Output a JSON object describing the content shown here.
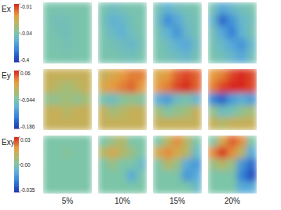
{
  "chart_data": [
    {
      "type": "heatmap",
      "title": "Ex",
      "colorbar": {
        "range": [
          -0.4,
          -0.01
        ],
        "ticks": [
          -0.4,
          -0.04,
          -0.01
        ]
      },
      "cells": [
        [
          [
            -0.045,
            -0.05,
            -0.045,
            -0.045,
            -0.045
          ],
          [
            -0.05,
            -0.07,
            -0.06,
            -0.05,
            -0.045
          ],
          [
            -0.045,
            -0.06,
            -0.07,
            -0.05,
            -0.045
          ],
          [
            -0.045,
            -0.05,
            -0.06,
            -0.05,
            -0.045
          ],
          [
            -0.045,
            -0.045,
            -0.05,
            -0.045,
            -0.045
          ]
        ],
        [
          [
            -0.05,
            -0.08,
            -0.06,
            -0.05,
            -0.05
          ],
          [
            -0.06,
            -0.12,
            -0.1,
            -0.06,
            -0.05
          ],
          [
            -0.05,
            -0.09,
            -0.12,
            -0.07,
            -0.05
          ],
          [
            -0.05,
            -0.06,
            -0.08,
            -0.1,
            -0.06
          ],
          [
            -0.05,
            -0.05,
            -0.06,
            -0.07,
            -0.05
          ]
        ],
        [
          [
            -0.06,
            -0.12,
            -0.08,
            -0.06,
            -0.05
          ],
          [
            -0.08,
            -0.22,
            -0.15,
            -0.08,
            -0.06
          ],
          [
            -0.06,
            -0.12,
            -0.2,
            -0.1,
            -0.06
          ],
          [
            -0.05,
            -0.08,
            -0.12,
            -0.15,
            -0.08
          ],
          [
            -0.05,
            -0.06,
            -0.08,
            -0.1,
            -0.06
          ]
        ],
        [
          [
            -0.06,
            -0.15,
            -0.1,
            -0.07,
            -0.05
          ],
          [
            -0.1,
            -0.3,
            -0.2,
            -0.1,
            -0.07
          ],
          [
            -0.07,
            -0.15,
            -0.25,
            -0.12,
            -0.06
          ],
          [
            -0.06,
            -0.1,
            -0.15,
            -0.2,
            -0.1
          ],
          [
            -0.05,
            -0.07,
            -0.1,
            -0.15,
            -0.07
          ]
        ]
      ]
    },
    {
      "type": "heatmap",
      "title": "Ey",
      "colorbar": {
        "range": [
          -0.186,
          0.06
        ],
        "ticks": [
          -0.186,
          -0.044,
          0.06
        ]
      },
      "cells": [
        [
          [
            0,
            0,
            0,
            0,
            0
          ],
          [
            0,
            -0.01,
            -0.02,
            -0.01,
            0
          ],
          [
            -0.03,
            -0.03,
            -0.02,
            -0.03,
            -0.02
          ],
          [
            0,
            0,
            -0.01,
            0,
            0
          ],
          [
            0,
            0,
            0,
            0,
            0
          ]
        ],
        [
          [
            0,
            0.01,
            0.02,
            0.03,
            0.03
          ],
          [
            0.01,
            0.02,
            0.03,
            0.04,
            0.02
          ],
          [
            -0.05,
            -0.06,
            -0.04,
            -0.03,
            -0.04
          ],
          [
            0,
            -0.02,
            -0.01,
            0,
            0
          ],
          [
            0,
            0,
            0,
            0,
            0
          ]
        ],
        [
          [
            0.01,
            0.02,
            0.04,
            0.05,
            0.04
          ],
          [
            0.02,
            0.03,
            0.05,
            0.06,
            0.04
          ],
          [
            -0.08,
            -0.1,
            -0.06,
            -0.05,
            -0.07
          ],
          [
            -0.02,
            -0.04,
            -0.03,
            -0.02,
            0
          ],
          [
            0,
            0,
            0,
            0,
            0
          ]
        ],
        [
          [
            0.02,
            0.03,
            0.05,
            0.06,
            0.05
          ],
          [
            0.03,
            0.05,
            0.06,
            0.06,
            0.05
          ],
          [
            -0.12,
            -0.15,
            -0.1,
            -0.08,
            -0.1
          ],
          [
            -0.03,
            -0.06,
            -0.05,
            -0.03,
            -0.02
          ],
          [
            0,
            -0.01,
            0,
            0,
            0
          ]
        ]
      ]
    },
    {
      "type": "heatmap",
      "title": "Exy",
      "colorbar": {
        "range": [
          -0.035,
          0.03
        ],
        "ticks": [
          -0.035,
          {
            "value": 0,
            "label": "0.00"
          },
          0.03
        ]
      },
      "cells": [
        [
          [
            0,
            0,
            0,
            0,
            0
          ],
          [
            0,
            0,
            0.002,
            0,
            0
          ],
          [
            0,
            0,
            0,
            0,
            0
          ],
          [
            0,
            0,
            0,
            0,
            0
          ],
          [
            0,
            0,
            0,
            0,
            0
          ]
        ],
        [
          [
            0,
            0.005,
            0.01,
            0,
            0
          ],
          [
            0.01,
            0.015,
            0.01,
            0.005,
            0
          ],
          [
            0,
            0.005,
            0,
            0,
            -0.005
          ],
          [
            0,
            0,
            0,
            -0.01,
            0
          ],
          [
            0,
            0,
            0,
            0,
            0
          ]
        ],
        [
          [
            0,
            0.01,
            0.02,
            0.01,
            0
          ],
          [
            0.015,
            0.02,
            0.015,
            0.01,
            -0.005
          ],
          [
            0,
            0.01,
            0.005,
            -0.01,
            -0.015
          ],
          [
            0,
            0,
            0,
            -0.015,
            -0.01
          ],
          [
            0,
            0,
            0,
            0,
            -0.005
          ]
        ],
        [
          [
            0,
            0.015,
            0.025,
            0.02,
            0
          ],
          [
            0.02,
            0.03,
            0.02,
            0.01,
            -0.01
          ],
          [
            0.005,
            0.01,
            0.005,
            -0.015,
            -0.025
          ],
          [
            0,
            0,
            0,
            -0.02,
            -0.03
          ],
          [
            0,
            0,
            0,
            -0.01,
            -0.01
          ]
        ]
      ]
    }
  ],
  "columns": [
    "5%",
    "10%",
    "15%",
    "20%"
  ]
}
